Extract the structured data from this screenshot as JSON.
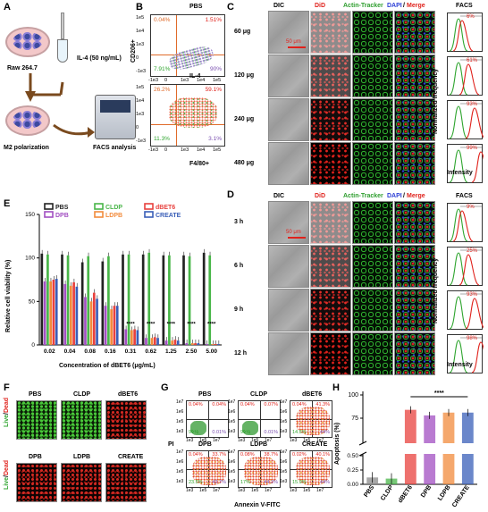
{
  "panelA": {
    "label": "A",
    "cell_line": "Raw 264.7",
    "treatment": "IL-4 (50 ng/mL)",
    "result": "M2 polarization",
    "analysis": "FACS analysis"
  },
  "panelB": {
    "label": "B",
    "ylabel": "CD206+",
    "xlabel": "F4/80+",
    "plots": [
      {
        "title": "PBS",
        "q_tl": "0.04%",
        "q_tr": "1.51%",
        "q_bl": "7.91%",
        "q_br": "90%"
      },
      {
        "title": "IL-4",
        "q_tl": "26.2%",
        "q_tr": "59.1%",
        "q_bl": "11.3%",
        "q_br": "3.1%"
      }
    ],
    "yticks": [
      "1e5",
      "1e4",
      "1e3",
      "0",
      "-1e3"
    ],
    "xticks": [
      "-1e3",
      "0",
      "1e3",
      "1e4",
      "1e5"
    ]
  },
  "panelC": {
    "label": "C",
    "headers": {
      "dic": "DIC",
      "did": "DiD",
      "actin": "Actin-Tracker",
      "dapi": "DAPI",
      "sep": "/",
      "merge": "Merge",
      "facs": "FACS"
    },
    "rows": [
      "60 μg",
      "120 μg",
      "240 μg",
      "480 μg"
    ],
    "facs_pct": [
      "6%",
      "61%",
      "93%",
      "99%"
    ],
    "scalebar": "50 μm",
    "ylabel": "Normalized frequency",
    "xlabel": "Intensity"
  },
  "panelD": {
    "label": "D",
    "headers": {
      "dic": "DIC",
      "did": "DiD",
      "actin": "Actin-Tracker",
      "dapi": "DAPI",
      "sep": "/",
      "merge": "Merge",
      "facs": "FACS"
    },
    "rows": [
      "3 h",
      "6 h",
      "9 h",
      "12 h"
    ],
    "facs_pct": [
      "9%",
      "25%",
      "93%",
      "98%"
    ],
    "scalebar": "50 μm",
    "ylabel": "Normalized frequency",
    "xlabel": "Intensity"
  },
  "panelE": {
    "label": "E",
    "chart_data": {
      "type": "bar",
      "ylabel": "Relative cell viability (%)",
      "xlabel": "Concentration of dBET6 (μg/mL)",
      "ylim": [
        0,
        150
      ],
      "yticks": [
        "0",
        "50",
        "100",
        "150"
      ],
      "categories": [
        "0.02",
        "0.04",
        "0.08",
        "0.16",
        "0.31",
        "0.62",
        "1.25",
        "2.50",
        "5.00"
      ],
      "significance": [
        "",
        "",
        "",
        "",
        "****",
        "****",
        "****",
        "****",
        "****"
      ],
      "series": [
        {
          "name": "PBS",
          "color": "#222222",
          "values": [
            105,
            104,
            95,
            96,
            104,
            104,
            103,
            103,
            106
          ]
        },
        {
          "name": "DPB",
          "color": "#a24fc2",
          "values": [
            73,
            70,
            55,
            45,
            18,
            8,
            5,
            2,
            1
          ]
        },
        {
          "name": "CLDP",
          "color": "#49b649",
          "values": [
            104,
            103,
            102,
            102,
            104,
            106,
            103,
            102,
            103
          ]
        },
        {
          "name": "LDPB",
          "color": "#f28b3c",
          "values": [
            73,
            68,
            50,
            41,
            17,
            8,
            5,
            2,
            1
          ]
        },
        {
          "name": "dBET6",
          "color": "#e8413e",
          "values": [
            75,
            72,
            60,
            45,
            18,
            9,
            6,
            2,
            1
          ]
        },
        {
          "name": "CREATE",
          "color": "#3a5fb8",
          "values": [
            76,
            67,
            53,
            45,
            17,
            8,
            5,
            2,
            1
          ]
        }
      ]
    }
  },
  "panelF": {
    "label": "F",
    "side_live": "Live",
    "side_sep": "/",
    "side_dead": "Dead",
    "top": [
      "PBS",
      "CLDP",
      "dBET6"
    ],
    "bottom": [
      "DPB",
      "LDPB",
      "CREATE"
    ]
  },
  "panelG": {
    "label": "G",
    "ylabel": "PI",
    "xlabel": "Annexin V-FITC",
    "plots": [
      {
        "title": "PBS",
        "tl": "0.04%",
        "tr": "0.04%",
        "bl": "99%",
        "br": "0.01%"
      },
      {
        "title": "CLDP",
        "tl": "0.04%",
        "tr": "0.07%",
        "bl": "99%",
        "br": "0.01%"
      },
      {
        "title": "dBET6",
        "tl": "0.04%",
        "tr": "41.3%",
        "bl": "14.5%",
        "br": "44%"
      },
      {
        "title": "DPB",
        "tl": "0.04%",
        "tr": "33.7%",
        "bl": "23.5%",
        "br": "42.7%"
      },
      {
        "title": "LDPB",
        "tl": "0.08%",
        "tr": "38.7%",
        "bl": "17%",
        "br": "44.2%"
      },
      {
        "title": "CREATE",
        "tl": "0.02%",
        "tr": "40.1%",
        "bl": "15.9%",
        "br": "44%"
      }
    ],
    "ticks": [
      "1e7",
      "1e6",
      "1e5",
      "1e3"
    ],
    "xticks": [
      "1e3",
      "1e5",
      "1e7"
    ]
  },
  "panelH": {
    "label": "H",
    "chart_data": {
      "type": "bar",
      "ylabel": "Apoptosis (%)",
      "yticks_top": [
        "75",
        "100"
      ],
      "yticks_bottom": [
        "0.00",
        "0.25",
        "0.50"
      ],
      "categories": [
        "PBS",
        "CLDP",
        "dBET6",
        "DPB",
        "LDPB",
        "CREATE"
      ],
      "values": [
        0.12,
        0.1,
        84,
        78,
        81,
        81
      ],
      "colors": [
        "#8a8a8a",
        "#49b649",
        "#e8413e",
        "#a24fc2",
        "#f28b3c",
        "#3a5fb8"
      ],
      "significance": "****"
    }
  }
}
